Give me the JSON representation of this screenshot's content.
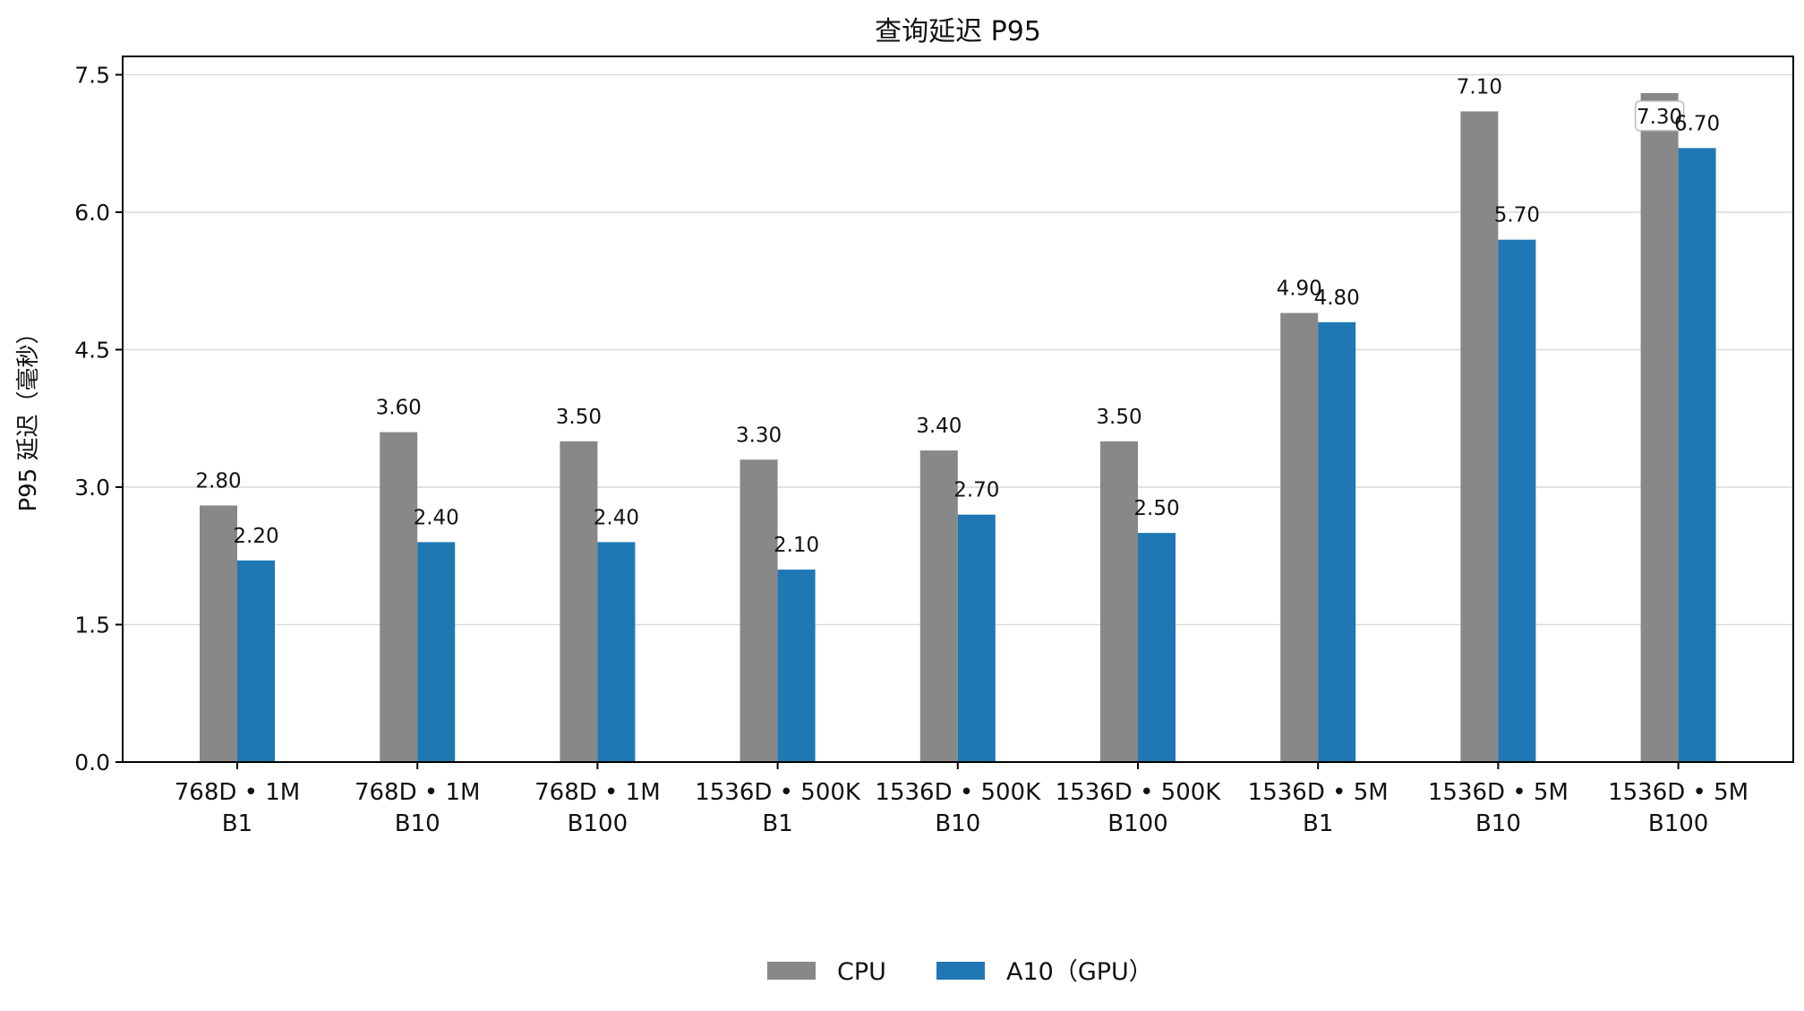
{
  "chart_data": {
    "type": "bar",
    "title": "查询延迟 P95",
    "ylabel": "P95 延迟（毫秒）",
    "xlabel": "",
    "ylim": [
      0,
      7.7
    ],
    "yticks": [
      "0.0",
      "1.5",
      "3.0",
      "4.5",
      "6.0",
      "7.5"
    ],
    "grid": "horizontal",
    "legend_position": "bottom-center",
    "categories": [
      [
        "768D • 1M",
        "B1"
      ],
      [
        "768D • 1M",
        "B10"
      ],
      [
        "768D • 1M",
        "B100"
      ],
      [
        "1536D • 500K",
        "B1"
      ],
      [
        "1536D • 500K",
        "B10"
      ],
      [
        "1536D • 500K",
        "B100"
      ],
      [
        "1536D • 5M",
        "B1"
      ],
      [
        "1536D • 5M",
        "B10"
      ],
      [
        "1536D • 5M",
        "B100"
      ]
    ],
    "series": [
      {
        "name": "CPU",
        "color": "#888888",
        "values": [
          2.8,
          3.6,
          3.5,
          3.3,
          3.4,
          3.5,
          4.9,
          7.1,
          7.3
        ],
        "labels": [
          "2.80",
          "3.60",
          "3.50",
          "3.30",
          "3.40",
          "3.50",
          "4.90",
          "7.10",
          "7.30"
        ]
      },
      {
        "name": "A10（GPU）",
        "color": "#1f77b4",
        "values": [
          2.2,
          2.4,
          2.4,
          2.1,
          2.7,
          2.5,
          4.8,
          5.7,
          6.7
        ],
        "labels": [
          "2.20",
          "2.40",
          "2.40",
          "2.10",
          "2.70",
          "2.50",
          "4.80",
          "5.70",
          "6.70"
        ]
      }
    ]
  }
}
